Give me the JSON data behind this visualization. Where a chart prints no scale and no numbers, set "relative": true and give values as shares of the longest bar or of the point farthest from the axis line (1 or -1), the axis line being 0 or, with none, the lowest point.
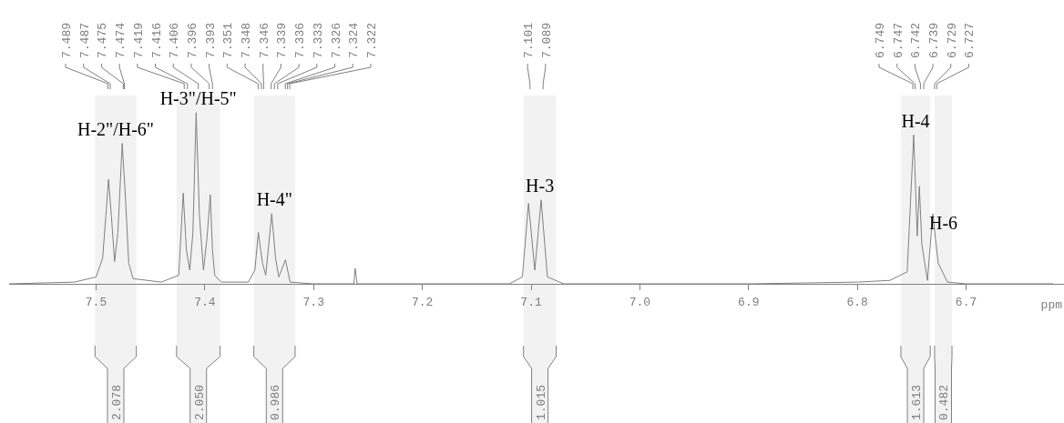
{
  "chart_data": {
    "type": "line",
    "relative": true,
    "xlabel": "ppm",
    "legend": false,
    "grid": false,
    "color": "#808080",
    "x": [
      7.58,
      7.52,
      7.5,
      7.494,
      7.491,
      7.4886,
      7.486,
      7.483,
      7.48,
      7.476,
      7.473,
      7.47,
      7.466,
      7.44,
      7.424,
      7.4199,
      7.417,
      7.4139,
      7.411,
      7.408,
      7.405,
      7.4013,
      7.398,
      7.395,
      7.393,
      7.391,
      7.385,
      7.36,
      7.354,
      7.3508,
      7.347,
      7.344,
      7.3385,
      7.335,
      7.332,
      7.3259,
      7.3216,
      7.3,
      7.263,
      7.2618,
      7.26,
      7.12,
      7.108,
      7.1024,
      7.0966,
      7.0908,
      7.085,
      7.07,
      6.9,
      6.8,
      6.77,
      6.7542,
      6.7482,
      6.745,
      6.743,
      6.7407,
      6.7356,
      6.7306,
      6.7283,
      6.7256,
      6.7172,
      6.7,
      6.62
    ],
    "values": [
      0,
      0.01,
      0.04,
      0.15,
      0.4,
      0.61,
      0.4,
      0.13,
      0.3,
      0.82,
      0.5,
      0.12,
      0.03,
      0.01,
      0.05,
      0.53,
      0.2,
      0.08,
      0.3,
      1.0,
      0.4,
      0.08,
      0.27,
      0.52,
      0.2,
      0.05,
      0.01,
      0.01,
      0.08,
      0.3,
      0.12,
      0.05,
      0.41,
      0.15,
      0.04,
      0.14,
      0.01,
      0,
      0,
      0.09,
      0,
      0,
      0.04,
      0.47,
      0.08,
      0.49,
      0.04,
      0,
      0,
      0.01,
      0.02,
      0.07,
      0.87,
      0.28,
      0.57,
      0.23,
      0.02,
      0.41,
      0.27,
      0.12,
      0.01,
      0,
      0
    ],
    "xlim": [
      7.58,
      6.61
    ],
    "xticks": [
      7.5,
      7.4,
      7.3,
      7.2,
      7.1,
      {
        "value": 7,
        "label": "7.0"
      },
      6.9,
      6.8,
      6.7
    ],
    "annotations": [
      {
        "text": "7.489",
        "x": 7.489
      },
      {
        "text": "7.487",
        "x": 7.487
      },
      {
        "text": "7.475",
        "x": 7.475
      },
      {
        "text": "7.474",
        "x": 7.474
      },
      {
        "text": "7.419",
        "x": 7.419
      },
      {
        "text": "7.416",
        "x": 7.416
      },
      {
        "text": "7.406",
        "x": 7.406
      },
      {
        "text": "7.396",
        "x": 7.396
      },
      {
        "text": "7.393",
        "x": 7.393
      },
      {
        "text": "7.351",
        "x": 7.351
      },
      {
        "text": "7.348",
        "x": 7.348
      },
      {
        "text": "7.346",
        "x": 7.346
      },
      {
        "text": "7.339",
        "x": 7.339
      },
      {
        "text": "7.336",
        "x": 7.336
      },
      {
        "text": "7.333",
        "x": 7.333
      },
      {
        "text": "7.326",
        "x": 7.326
      },
      {
        "text": "7.324",
        "x": 7.324
      },
      {
        "text": "7.322",
        "x": 7.322
      },
      {
        "text": "7.101",
        "x": 7.101
      },
      {
        "text": "7.089",
        "x": 7.089
      },
      {
        "text": "6.749",
        "x": 6.749
      },
      {
        "text": "6.747",
        "x": 6.747
      },
      {
        "text": "6.742",
        "x": 6.742
      },
      {
        "text": "6.739",
        "x": 6.739
      },
      {
        "text": "6.729",
        "x": 6.729
      },
      {
        "text": "6.727",
        "x": 6.727
      },
      "H-2\"/H-6\"",
      "H-3\"/H-5\"",
      "H-4\"",
      "H-3",
      "H-4",
      "H-6"
    ],
    "bands": [
      {
        "axis": "x",
        "from": 7.501,
        "to": 7.463,
        "label": "2.078",
        "color": "#f2f2f2"
      },
      {
        "axis": "x",
        "from": 7.426,
        "to": 7.386,
        "label": "2.050",
        "color": "#f2f2f2"
      },
      {
        "axis": "x",
        "from": 7.355,
        "to": 7.317,
        "label": "0.986",
        "color": "#f2f2f2"
      },
      {
        "axis": "x",
        "from": 7.107,
        "to": 7.077,
        "label": "1.015",
        "color": "#f2f2f2"
      },
      {
        "axis": "x",
        "from": 6.76,
        "to": 6.733,
        "label": "1.613",
        "color": "#f2f2f2"
      },
      {
        "axis": "x",
        "from": 6.729,
        "to": 6.713,
        "label": "0.482",
        "color": "#f2f2f2"
      }
    ]
  }
}
